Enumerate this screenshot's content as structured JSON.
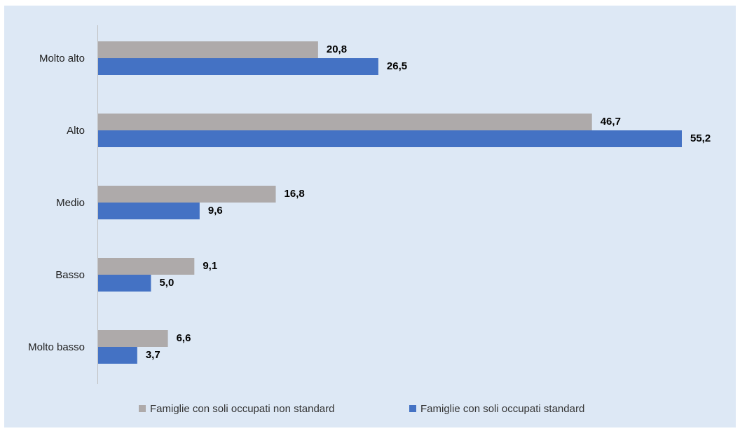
{
  "chart_data": {
    "type": "bar",
    "orientation": "horizontal",
    "categories": [
      "Molto alto",
      "Alto",
      "Medio",
      "Basso",
      "Molto basso"
    ],
    "series": [
      {
        "name": "Famiglie con soli occupati non standard",
        "color": "#aeaaaa",
        "values": [
          20.8,
          46.7,
          16.8,
          9.1,
          6.6
        ],
        "labels": [
          "20,8",
          "46,7",
          "16,8",
          "9,1",
          "6,6"
        ]
      },
      {
        "name": "Famiglie con soli occupati standard",
        "color": "#4472c4",
        "values": [
          26.5,
          55.2,
          9.6,
          5.0,
          3.7
        ],
        "labels": [
          "26,5",
          "55,2",
          "9,6",
          "5,0",
          "3,7"
        ]
      }
    ],
    "xlim": [
      0,
      55.2
    ],
    "grid": false,
    "legend_position": "bottom",
    "title": "",
    "xlabel": "",
    "ylabel": ""
  }
}
